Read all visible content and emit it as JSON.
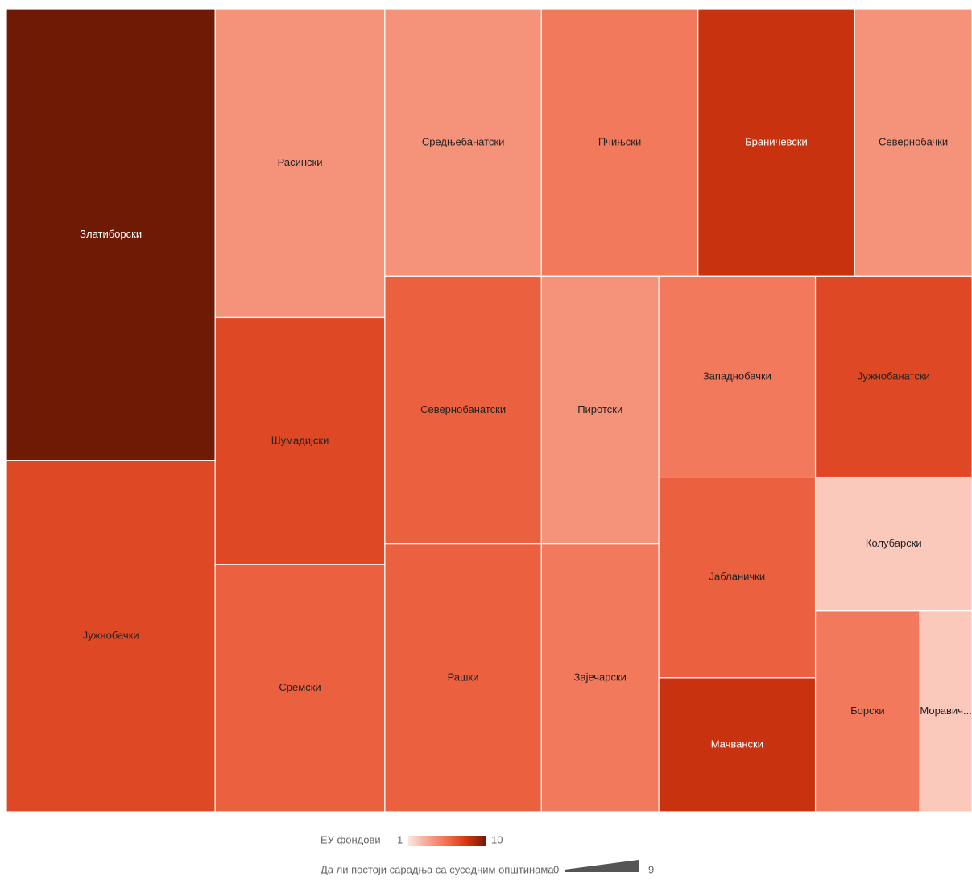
{
  "chart_data": {
    "type": "treemap",
    "items": [
      {
        "name": "Златиборски",
        "size": 9,
        "value": 10
      },
      {
        "name": "Јужнобачки",
        "size": 7,
        "value": 7
      },
      {
        "name": "Расински",
        "size": 5,
        "value": 4
      },
      {
        "name": "Шумадијски",
        "size": 4,
        "value": 7
      },
      {
        "name": "Сремски",
        "size": 4,
        "value": 6
      },
      {
        "name": "Средњебанатски",
        "size": 4,
        "value": 4
      },
      {
        "name": "Пчињски",
        "size": 4,
        "value": 5
      },
      {
        "name": "Браничевски",
        "size": 4,
        "value": 8
      },
      {
        "name": "Севернобачки",
        "size": 3,
        "value": 4
      },
      {
        "name": "Севернобанатски",
        "size": 4,
        "value": 6
      },
      {
        "name": "Рашки",
        "size": 4,
        "value": 6
      },
      {
        "name": "Пиротски",
        "size": 3,
        "value": 4
      },
      {
        "name": "Зајечарски",
        "size": 3,
        "value": 5
      },
      {
        "name": "Западнобачки",
        "size": 3,
        "value": 5
      },
      {
        "name": "Јабланички",
        "size": 3,
        "value": 6
      },
      {
        "name": "Мачвански",
        "size": 2,
        "value": 8
      },
      {
        "name": "Јужнобанатски",
        "size": 3,
        "value": 7
      },
      {
        "name": "Колубарски",
        "size": 2,
        "value": 2
      },
      {
        "name": "Борски",
        "size": 2,
        "value": 5
      },
      {
        "name": "Моравич...",
        "size": 1,
        "value": 2
      }
    ],
    "color_scale": [
      "#fde6de",
      "#f7a590",
      "#f26d4d",
      "#d43510",
      "#6e1a04"
    ],
    "color_legend": {
      "title": "ЕУ фондови",
      "min": 1,
      "max": 10
    },
    "size_legend": {
      "title": "Да ли постоји сарадња са суседним општинама",
      "min": 0,
      "max": 9
    }
  }
}
